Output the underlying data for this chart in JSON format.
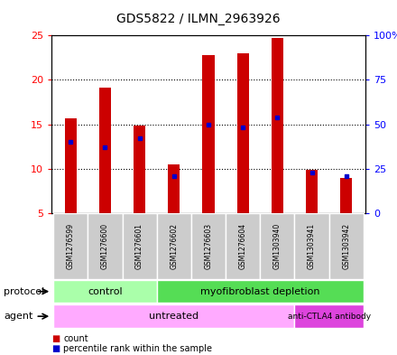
{
  "title": "GDS5822 / ILMN_2963926",
  "samples": [
    "GSM1276599",
    "GSM1276600",
    "GSM1276601",
    "GSM1276602",
    "GSM1276603",
    "GSM1276604",
    "GSM1303940",
    "GSM1303941",
    "GSM1303942"
  ],
  "counts": [
    15.7,
    19.1,
    14.9,
    10.5,
    22.8,
    23.0,
    24.7,
    9.9,
    9.0
  ],
  "percentile_ranks": [
    40,
    37,
    42,
    21,
    50,
    48,
    54,
    23,
    21
  ],
  "ylim_left": [
    5,
    25
  ],
  "ylim_right": [
    0,
    100
  ],
  "yticks_left": [
    5,
    10,
    15,
    20,
    25
  ],
  "yticks_right": [
    0,
    25,
    50,
    75,
    100
  ],
  "bar_color": "#cc0000",
  "dot_color": "#0000cc",
  "protocol_control_color": "#aaffaa",
  "protocol_myofib_color": "#55dd55",
  "agent_untreated_color": "#ffaaff",
  "agent_anti_color": "#dd44dd",
  "bg_color": "#cccccc",
  "legend_count_color": "#cc0000",
  "legend_pct_color": "#0000cc",
  "bar_width": 0.35
}
